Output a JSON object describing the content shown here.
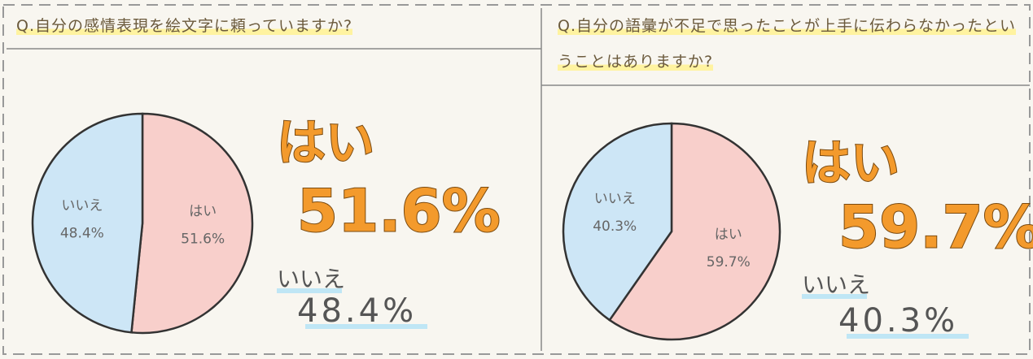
{
  "chart_data": [
    {
      "type": "pie",
      "title": "Q.自分の感情表現を絵文字に頼っていますか?",
      "categories": [
        "はい",
        "いいえ"
      ],
      "values": [
        51.6,
        48.4
      ],
      "value_labels": [
        "51.6%",
        "48.4%"
      ],
      "colors": [
        "#f8cfcb",
        "#cde6f6"
      ]
    },
    {
      "type": "pie",
      "title": "Q.自分の語彙が不足で思ったことが上手に伝わらなかったということはありますか?",
      "categories": [
        "はい",
        "いいえ"
      ],
      "values": [
        59.7,
        40.3
      ],
      "value_labels": [
        "59.7%",
        "40.3%"
      ],
      "colors": [
        "#f8cfcb",
        "#cde6f6"
      ]
    }
  ]
}
